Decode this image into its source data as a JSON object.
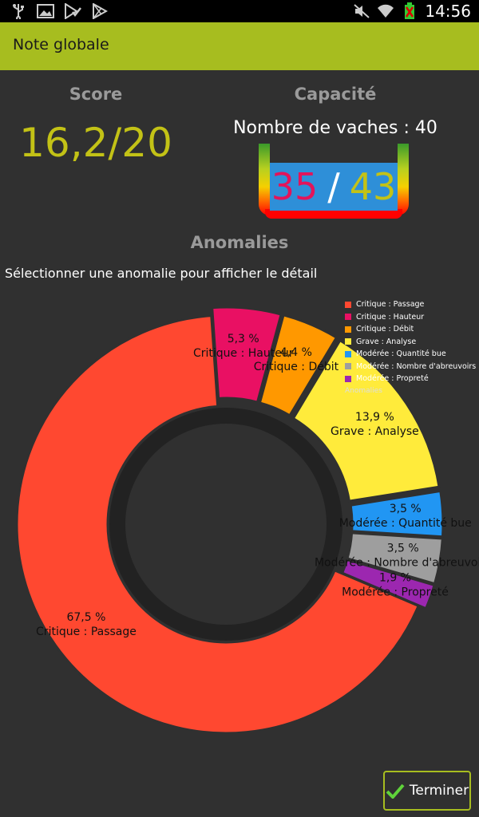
{
  "status_bar": {
    "time": "14:56"
  },
  "action_bar": {
    "title": "Note globale"
  },
  "score": {
    "title": "Score",
    "value": "16,2/20"
  },
  "capacity": {
    "title": "Capacité",
    "cows_label": "Nombre de vaches : 40",
    "current": "35",
    "separator": "/",
    "max": "43"
  },
  "anomalies": {
    "title": "Anomalies",
    "hint": "Sélectionner une anomalie pour afficher le détail"
  },
  "chart_data": {
    "type": "pie",
    "style": "donut",
    "title": "Anomalies",
    "series": [
      {
        "name": "Critique : Passage",
        "value": 67.5,
        "label": "67,5 %",
        "color": "#FF4830"
      },
      {
        "name": "Critique : Hauteur",
        "value": 5.3,
        "label": "5,3 %",
        "color": "#E91063"
      },
      {
        "name": "Critique : Débit",
        "value": 4.4,
        "label": "4,4 %",
        "color": "#FF9800"
      },
      {
        "name": "Grave : Analyse",
        "value": 13.9,
        "label": "13,9 %",
        "color": "#FFEB3B"
      },
      {
        "name": "Modérée : Quantité bue",
        "value": 3.5,
        "label": "3,5 %",
        "color": "#2196F3"
      },
      {
        "name": "Modérée : Nombre d'abreuvoirs",
        "value": 3.5,
        "label": "3,5 %",
        "color": "#9E9E9E"
      },
      {
        "name": "Modérée : Propreté",
        "value": 1.9,
        "label": "1,9 %",
        "color": "#9C27B0"
      }
    ],
    "legend_title": "Anomalies",
    "legend_position": "top-right"
  },
  "buttons": {
    "finish": "Terminer"
  }
}
